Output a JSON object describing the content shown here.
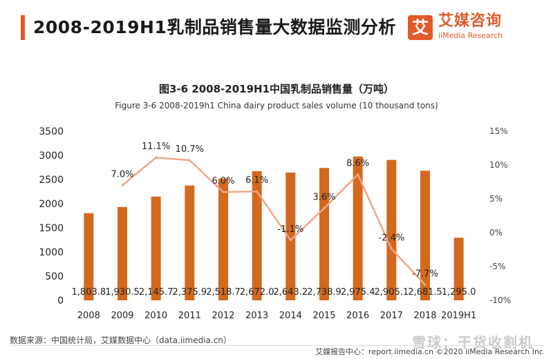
{
  "header": {
    "title": "2008-2019H1乳制品销售量大数据监测分析",
    "logo_mark": "艾",
    "logo_cn": "艾媒咨询",
    "logo_en": "iiMedia Research"
  },
  "colors": {
    "accent": "#e05a2a",
    "bar": "#d2691e",
    "line": "#f0a58a"
  },
  "chart_data": {
    "type": "bar",
    "title": "图3-6 2008-2019H1中国乳制品销售量（万吨）",
    "subtitle": "Figure 3-6 2008-2019h1 China dairy product sales volume (10 thousand tons)",
    "categories": [
      "2008",
      "2009",
      "2010",
      "2011",
      "2012",
      "2013",
      "2014",
      "2015",
      "2016",
      "2017",
      "2018",
      "2019H1"
    ],
    "series": [
      {
        "type": "bar",
        "values": [
          1803.8,
          1930.5,
          2145.7,
          2375.9,
          2518.7,
          2672.0,
          2643.2,
          2738.9,
          2975.4,
          2905.1,
          2681.5,
          1295.0
        ],
        "labels": [
          "1,803.8",
          "1,930.5",
          "2,145.7",
          "2,375.9",
          "2,518.7",
          "2,672.0",
          "2,643.2",
          "2,738.9",
          "2,975.4",
          "2,905.1",
          "2,681.5",
          "1,295.0"
        ]
      },
      {
        "type": "line",
        "axis": "right",
        "x": [
          "2009",
          "2010",
          "2011",
          "2012",
          "2013",
          "2014",
          "2015",
          "2016",
          "2017",
          "2018"
        ],
        "values": [
          7.0,
          11.1,
          10.7,
          6.0,
          6.1,
          -1.1,
          3.6,
          8.6,
          -2.4,
          -7.7
        ],
        "labels": [
          "7.0%",
          "11.1%",
          "10.7%",
          "6.0%",
          "6.1%",
          "-1.1%",
          "3.6%",
          "8.6%",
          "-2.4%",
          "-7.7%"
        ]
      }
    ],
    "ylim": [
      0,
      3500
    ],
    "yticks": [
      "0",
      "500",
      "1000",
      "1500",
      "2000",
      "2500",
      "3000",
      "3500"
    ],
    "y2lim": [
      -10,
      15
    ],
    "y2ticks": [
      "-10%",
      "-5%",
      "0%",
      "5%",
      "10%",
      "15%"
    ],
    "grid": false,
    "legend": "none"
  },
  "footer": {
    "source": "数据来源：中国统计局，艾媒数据中心（data.iimedia.cn）",
    "copyright": "艾媒报告中心：report.iimedia.cn ©2020  iiMedia Research Inc",
    "watermark": "雪球：干货收割机"
  }
}
